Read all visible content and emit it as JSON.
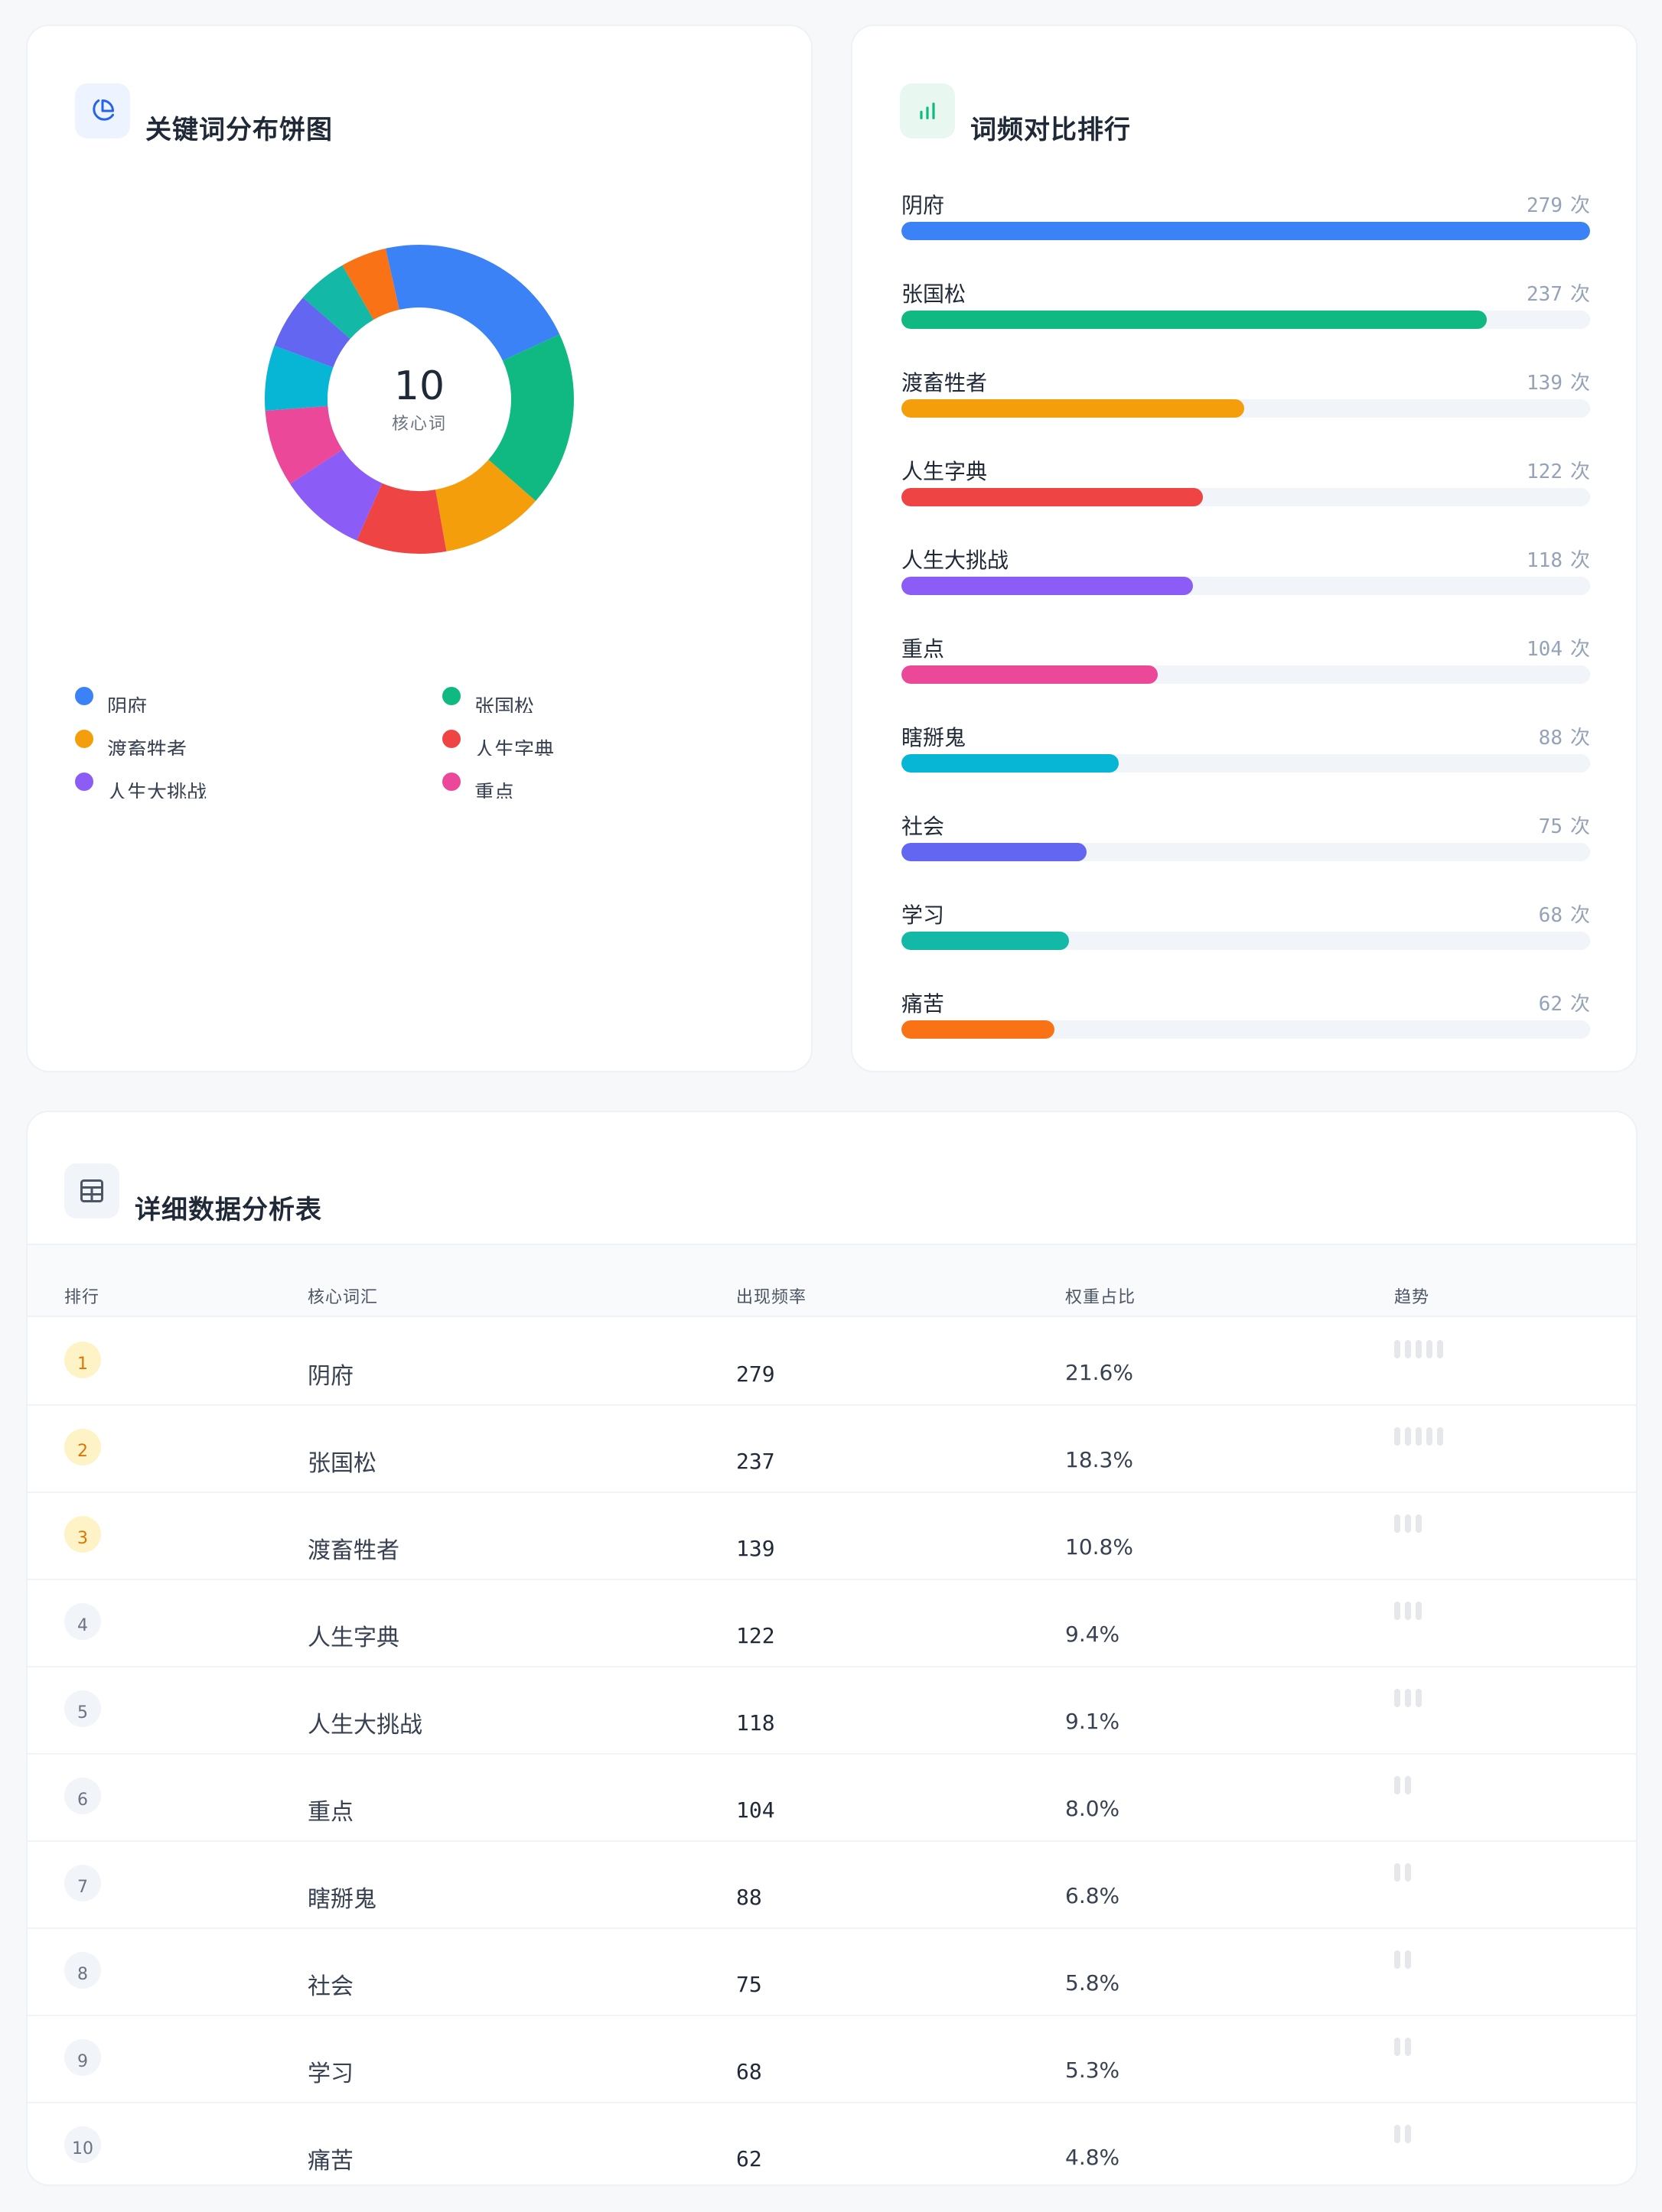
{
  "pie_card": {
    "title": "关键词分布饼图",
    "icon": "pie-chart-icon",
    "center_value": "10",
    "center_label": "核心词",
    "legend": [
      {
        "label": "阴府",
        "color": "#3b82f6"
      },
      {
        "label": "张国松",
        "color": "#10b981"
      },
      {
        "label": "渡畜牲者",
        "color": "#f59e0b"
      },
      {
        "label": "人生字典",
        "color": "#ef4444"
      },
      {
        "label": "人生大挑战",
        "color": "#8b5cf6"
      },
      {
        "label": "重点",
        "color": "#ec4899"
      }
    ]
  },
  "bars_card": {
    "title": "词频对比排行",
    "icon": "bar-chart-icon",
    "unit": "次"
  },
  "table_card": {
    "title": "详细数据分析表",
    "icon": "table-icon",
    "headers": [
      "排行",
      "核心词汇",
      "出现频率",
      "权重占比",
      "趋势"
    ],
    "rows": [
      {
        "rank": "1",
        "word": "阴府",
        "freq": "279",
        "weight": "21.6%",
        "trend": 5
      },
      {
        "rank": "2",
        "word": "张国松",
        "freq": "237",
        "weight": "18.3%",
        "trend": 5
      },
      {
        "rank": "3",
        "word": "渡畜牲者",
        "freq": "139",
        "weight": "10.8%",
        "trend": 3
      },
      {
        "rank": "4",
        "word": "人生字典",
        "freq": "122",
        "weight": "9.4%",
        "trend": 3
      },
      {
        "rank": "5",
        "word": "人生大挑战",
        "freq": "118",
        "weight": "9.1%",
        "trend": 3
      },
      {
        "rank": "6",
        "word": "重点",
        "freq": "104",
        "weight": "8.0%",
        "trend": 2
      },
      {
        "rank": "7",
        "word": "瞎掰鬼",
        "freq": "88",
        "weight": "6.8%",
        "trend": 2
      },
      {
        "rank": "8",
        "word": "社会",
        "freq": "75",
        "weight": "5.8%",
        "trend": 2
      },
      {
        "rank": "9",
        "word": "学习",
        "freq": "68",
        "weight": "5.3%",
        "trend": 2
      },
      {
        "rank": "10",
        "word": "痛苦",
        "freq": "62",
        "weight": "4.8%",
        "trend": 2
      }
    ]
  },
  "chart_data": [
    {
      "type": "pie",
      "categories": [
        "阴府",
        "张国松",
        "渡畜牲者",
        "人生字典",
        "人生大挑战",
        "重点",
        "瞎掰鬼",
        "社会",
        "学习",
        "痛苦"
      ],
      "values": [
        279,
        237,
        139,
        122,
        118,
        104,
        88,
        75,
        68,
        62
      ],
      "colors": [
        "#3b82f6",
        "#10b981",
        "#f59e0b",
        "#ef4444",
        "#8b5cf6",
        "#ec4899",
        "#06b6d4",
        "#6366f1",
        "#14b8a6",
        "#f97316"
      ],
      "donut": true
    },
    {
      "type": "bar",
      "orientation": "horizontal",
      "categories": [
        "阴府",
        "张国松",
        "渡畜牲者",
        "人生字典",
        "人生大挑战",
        "重点",
        "瞎掰鬼",
        "社会",
        "学习",
        "痛苦"
      ],
      "values": [
        279,
        237,
        139,
        122,
        118,
        104,
        88,
        75,
        68,
        62
      ],
      "colors": [
        "#3b82f6",
        "#10b981",
        "#f59e0b",
        "#ef4444",
        "#8b5cf6",
        "#ec4899",
        "#06b6d4",
        "#6366f1",
        "#14b8a6",
        "#f97316"
      ],
      "xlim": [
        0,
        279
      ]
    }
  ]
}
